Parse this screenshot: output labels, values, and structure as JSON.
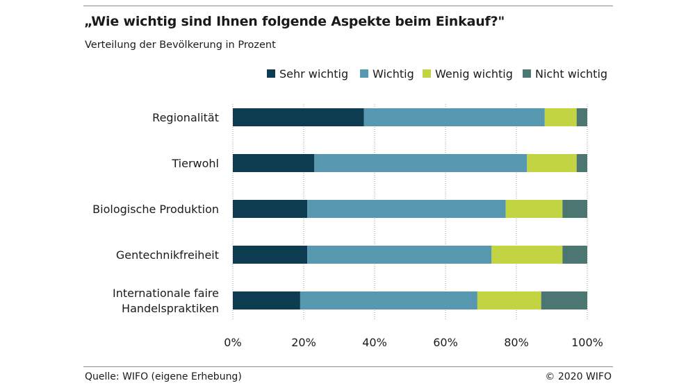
{
  "header": {
    "title": "„Wie wichtig sind Ihnen folgende Aspekte beim Einkauf?\"",
    "subtitle": "Verteilung der Bevölkerung in Prozent"
  },
  "footer": {
    "source": "Quelle: WIFO (eigene Erhebung)",
    "copyright": "© 2020 WIFO"
  },
  "chart_data": {
    "type": "bar",
    "orientation": "horizontal",
    "stacked": true,
    "legend_position": "top-right",
    "grid": "vertical-dotted",
    "xlim": [
      0,
      100
    ],
    "xticks": [
      "0%",
      "20%",
      "40%",
      "60%",
      "80%",
      "100%"
    ],
    "categories": [
      [
        "Regionalität"
      ],
      [
        "Tierwohl"
      ],
      [
        "Biologische Produktion"
      ],
      [
        "Gentechnikfreiheit"
      ],
      [
        "Internationale faire",
        "Handelspraktiken"
      ]
    ],
    "series": [
      {
        "name": "Sehr wichtig",
        "color": "#0d3b4f",
        "values": [
          37,
          23,
          21,
          21,
          19
        ]
      },
      {
        "name": "Wichtig",
        "color": "#5797b0",
        "values": [
          51,
          60,
          56,
          52,
          50
        ]
      },
      {
        "name": "Wenig wichtig",
        "color": "#c3d443",
        "values": [
          9,
          14,
          16,
          20,
          18
        ]
      },
      {
        "name": "Nicht wichtig",
        "color": "#4b7672",
        "values": [
          3,
          3,
          7,
          7,
          13
        ]
      }
    ]
  }
}
